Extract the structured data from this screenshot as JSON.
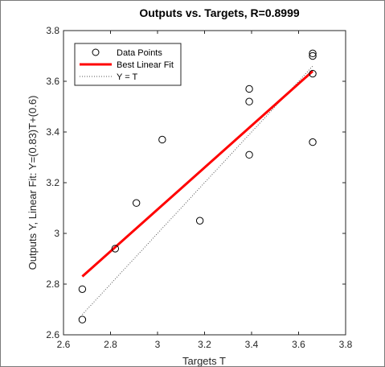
{
  "chart_data": {
    "type": "scatter",
    "title": "Outputs vs. Targets, R=0.8999",
    "xlabel": "Targets T",
    "ylabel": "Outputs Y,  Linear Fit: Y=(0.83)T+(0.6)",
    "xlim": [
      2.6,
      3.8
    ],
    "ylim": [
      2.6,
      3.8
    ],
    "x_ticks": [
      2.6,
      2.8,
      3.0,
      3.2,
      3.4,
      3.6,
      3.8
    ],
    "x_tick_labels": [
      "2.6",
      "2.8",
      "3",
      "3.2",
      "3.4",
      "3.6",
      "3.8"
    ],
    "y_ticks": [
      2.6,
      2.8,
      3.0,
      3.2,
      3.4,
      3.6,
      3.8
    ],
    "y_tick_labels": [
      "2.6",
      "2.8",
      "3",
      "3.2",
      "3.4",
      "3.6",
      "3.8"
    ],
    "grid": false,
    "legend_position": "top-left",
    "series": [
      {
        "name": "Data Points",
        "kind": "markers",
        "marker": "open-circle",
        "color": "#000000",
        "x": [
          2.68,
          2.68,
          2.82,
          2.91,
          3.02,
          3.18,
          3.39,
          3.39,
          3.39,
          3.66,
          3.66,
          3.66,
          3.66
        ],
        "y": [
          2.66,
          2.78,
          2.94,
          3.12,
          3.37,
          3.05,
          3.57,
          3.52,
          3.31,
          3.71,
          3.7,
          3.63,
          3.36
        ]
      },
      {
        "name": "Best Linear Fit",
        "kind": "line",
        "color": "#ff0000",
        "x": [
          2.68,
          3.66
        ],
        "y": [
          2.83,
          3.64
        ]
      },
      {
        "name": "Y = T",
        "kind": "dotted-line",
        "color": "#555555",
        "x": [
          2.68,
          3.66
        ],
        "y": [
          2.68,
          3.66
        ]
      }
    ]
  }
}
